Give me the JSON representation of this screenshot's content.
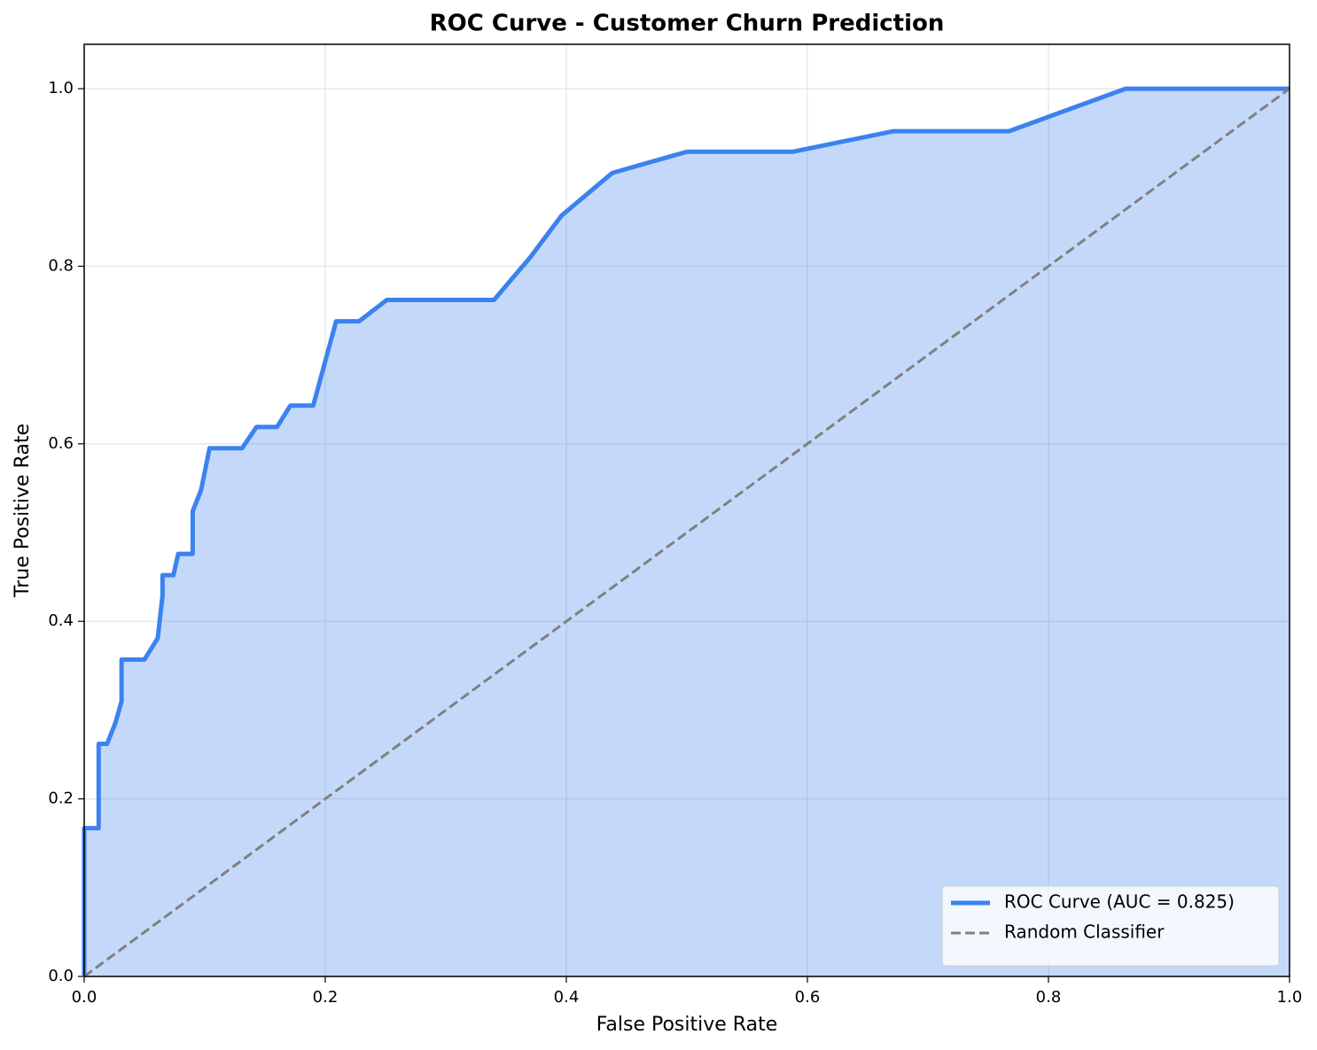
{
  "chart_data": {
    "type": "line",
    "title": "ROC Curve - Customer Churn Prediction",
    "x_label": "False Positive Rate",
    "y_label": "True Positive Rate",
    "xlim": [
      0,
      1
    ],
    "ylim": [
      0,
      1.05
    ],
    "xticks": [
      {
        "value": 0,
        "label": "0.0"
      },
      0.2,
      0.4,
      0.6,
      0.8,
      {
        "value": 1,
        "label": "1.0"
      }
    ],
    "yticks": [
      {
        "value": 0,
        "label": "0.0"
      },
      0.2,
      0.4,
      0.6,
      0.8,
      {
        "value": 1,
        "label": "1.0"
      }
    ],
    "grid": true,
    "legend": "lower right",
    "series": [
      {
        "name": "ROC Curve (AUC = 0.825)",
        "color": "#3b82f0",
        "fill": true,
        "dash": false,
        "x": [
          0,
          0,
          0.012,
          0.012,
          0.019,
          0.026,
          0.031,
          0.031,
          0.05,
          0.061,
          0.065,
          0.065,
          0.074,
          0.078,
          0.09,
          0.09,
          0.097,
          0.104,
          0.131,
          0.143,
          0.16,
          0.171,
          0.19,
          0.209,
          0.228,
          0.251,
          0.34,
          0.37,
          0.396,
          0.438,
          0.5,
          0.588,
          0.671,
          0.767,
          0.864,
          1.0
        ],
        "values": [
          0,
          0.167,
          0.167,
          0.262,
          0.262,
          0.286,
          0.31,
          0.357,
          0.357,
          0.381,
          0.429,
          0.452,
          0.452,
          0.476,
          0.476,
          0.524,
          0.548,
          0.595,
          0.595,
          0.619,
          0.619,
          0.643,
          0.643,
          0.738,
          0.738,
          0.762,
          0.762,
          0.81,
          0.857,
          0.905,
          0.929,
          0.929,
          0.952,
          0.952,
          1.0,
          1.0
        ]
      },
      {
        "name": "Random Classifier",
        "color": "#808080",
        "fill": false,
        "dash": true,
        "x": [
          0,
          1
        ],
        "values": [
          0,
          1
        ]
      }
    ]
  }
}
